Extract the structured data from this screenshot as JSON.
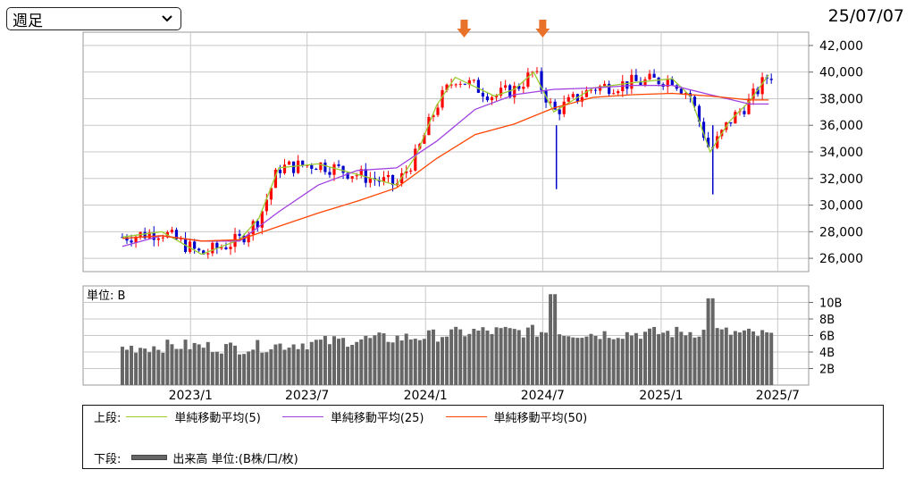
{
  "header": {
    "period_select": {
      "value": "週足",
      "icon": "chevron-down-icon"
    },
    "date": "25/07/07"
  },
  "legend": {
    "upper_label": "上段:",
    "lower_label": "下段:",
    "sma5": {
      "label": "単純移動平均(5)",
      "color": "#9acd32"
    },
    "sma25": {
      "label": "単純移動平均(25)",
      "color": "#a040e0"
    },
    "sma50": {
      "label": "単純移動平均(50)",
      "color": "#ff4500"
    },
    "volume": {
      "label": "出来高 単位:(B株/口/枚)",
      "color": "#666666"
    }
  },
  "chart_data": [
    {
      "type": "candlestick",
      "x_tick_labels": [
        "2023/1",
        "2023/7",
        "2024/1",
        "2024/7",
        "2025/1",
        "2025/7"
      ],
      "y_tick_labels": [
        "26,000",
        "28,000",
        "30,000",
        "32,000",
        "34,000",
        "36,000",
        "38,000",
        "40,000",
        "42,000"
      ],
      "ylim": [
        25000,
        43000
      ],
      "grid": true,
      "up_color": "#ff0000",
      "down_color": "#0000cc",
      "annotations": [
        {
          "type": "down-arrow",
          "date": "2024-03",
          "color": "#e8722a"
        },
        {
          "type": "down-arrow",
          "date": "2024-07",
          "color": "#e8722a"
        }
      ],
      "series": [
        {
          "name": "単純移動平均(5)",
          "color": "#9acd32",
          "x": [
            "2022-10",
            "2022-12",
            "2023-02",
            "2023-04",
            "2023-05",
            "2023-06",
            "2023-08",
            "2023-10",
            "2023-12",
            "2024-01",
            "2024-02",
            "2024-03",
            "2024-05",
            "2024-06",
            "2024-07",
            "2024-08",
            "2024-10",
            "2024-12",
            "2025-02",
            "2025-03",
            "2025-04",
            "2025-05",
            "2025-06",
            "2025-07"
          ],
          "values": [
            27600,
            28000,
            26300,
            27400,
            29000,
            32800,
            33100,
            32300,
            31500,
            33800,
            37500,
            39600,
            38200,
            38700,
            40000,
            37000,
            38800,
            39200,
            39500,
            38200,
            34000,
            36300,
            37800,
            39800
          ]
        },
        {
          "name": "単純移動平均(25)",
          "color": "#a040e0",
          "x": [
            "2022-10",
            "2022-12",
            "2023-02",
            "2023-04",
            "2023-06",
            "2023-08",
            "2023-10",
            "2023-12",
            "2024-02",
            "2024-04",
            "2024-06",
            "2024-08",
            "2024-10",
            "2024-12",
            "2025-02",
            "2025-04",
            "2025-06",
            "2025-07"
          ],
          "values": [
            26900,
            27700,
            27300,
            27300,
            29500,
            31500,
            32600,
            32800,
            34800,
            37200,
            38300,
            38700,
            38800,
            39000,
            39000,
            38300,
            37600,
            37600
          ]
        },
        {
          "name": "単純移動平均(50)",
          "color": "#ff4500",
          "x": [
            "2022-10",
            "2022-12",
            "2023-02",
            "2023-04",
            "2023-06",
            "2023-08",
            "2023-10",
            "2023-12",
            "2024-02",
            "2024-04",
            "2024-06",
            "2024-08",
            "2024-10",
            "2024-12",
            "2025-02",
            "2025-04",
            "2025-06",
            "2025-07"
          ],
          "values": [
            27500,
            27700,
            27300,
            27400,
            28400,
            29400,
            30300,
            31300,
            33500,
            35300,
            36100,
            37300,
            38100,
            38300,
            38400,
            38200,
            37900,
            37900
          ]
        }
      ]
    },
    {
      "type": "bar",
      "unit_label": "単位: B",
      "y_tick_labels": [
        "2B",
        "4B",
        "6B",
        "8B",
        "10B"
      ],
      "ylim": [
        0,
        12
      ],
      "color": "#666666",
      "x": [
        "2022-10",
        "2023-01",
        "2023-04",
        "2023-07",
        "2023-10",
        "2024-01",
        "2024-04",
        "2024-07",
        "2024-10",
        "2025-01",
        "2025-04",
        "2025-07"
      ],
      "values": [
        4.5,
        4.8,
        4.5,
        5.0,
        5.5,
        5.8,
        6.5,
        6.5,
        6.2,
        6.3,
        6.5,
        6.0
      ],
      "spikes": [
        {
          "date": "2024-08",
          "value": 11
        },
        {
          "date": "2025-04",
          "value": 10.5
        }
      ]
    }
  ]
}
